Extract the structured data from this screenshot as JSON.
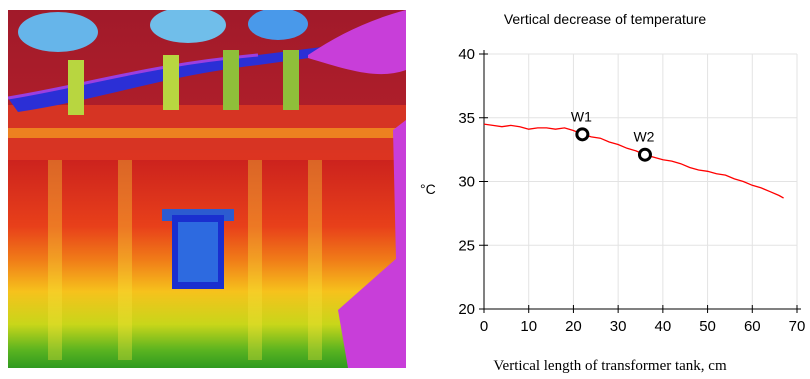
{
  "chart_data": {
    "type": "line",
    "title": "Vertical decrease of temperature",
    "xlabel": "Vertical length of transformer tank, cm",
    "ylabel": "°C",
    "xlim": [
      0,
      70
    ],
    "ylim": [
      20,
      40
    ],
    "xticks": [
      0,
      10,
      20,
      30,
      40,
      50,
      60,
      70
    ],
    "yticks": [
      20,
      25,
      30,
      35,
      40
    ],
    "grid": true,
    "series_color": "#ff0000",
    "series": [
      {
        "x": [
          0,
          2,
          4,
          6,
          8,
          10,
          12,
          14,
          16,
          18,
          20,
          22,
          24,
          26,
          28,
          30,
          32,
          34,
          36,
          38,
          40,
          42,
          44,
          46,
          48,
          50,
          52,
          54,
          56,
          58,
          60,
          62,
          64,
          66,
          67
        ],
        "y": [
          34.5,
          34.4,
          34.3,
          34.4,
          34.3,
          34.1,
          34.2,
          34.2,
          34.1,
          34.2,
          34.0,
          33.7,
          33.5,
          33.4,
          33.1,
          32.9,
          32.6,
          32.4,
          32.1,
          31.9,
          31.7,
          31.6,
          31.4,
          31.1,
          30.9,
          30.8,
          30.6,
          30.5,
          30.2,
          30.0,
          29.7,
          29.5,
          29.2,
          28.9,
          28.7
        ]
      }
    ],
    "markers": [
      {
        "label": "W1",
        "x": 22,
        "y": 33.7
      },
      {
        "label": "W2",
        "x": 36,
        "y": 32.1
      }
    ]
  }
}
